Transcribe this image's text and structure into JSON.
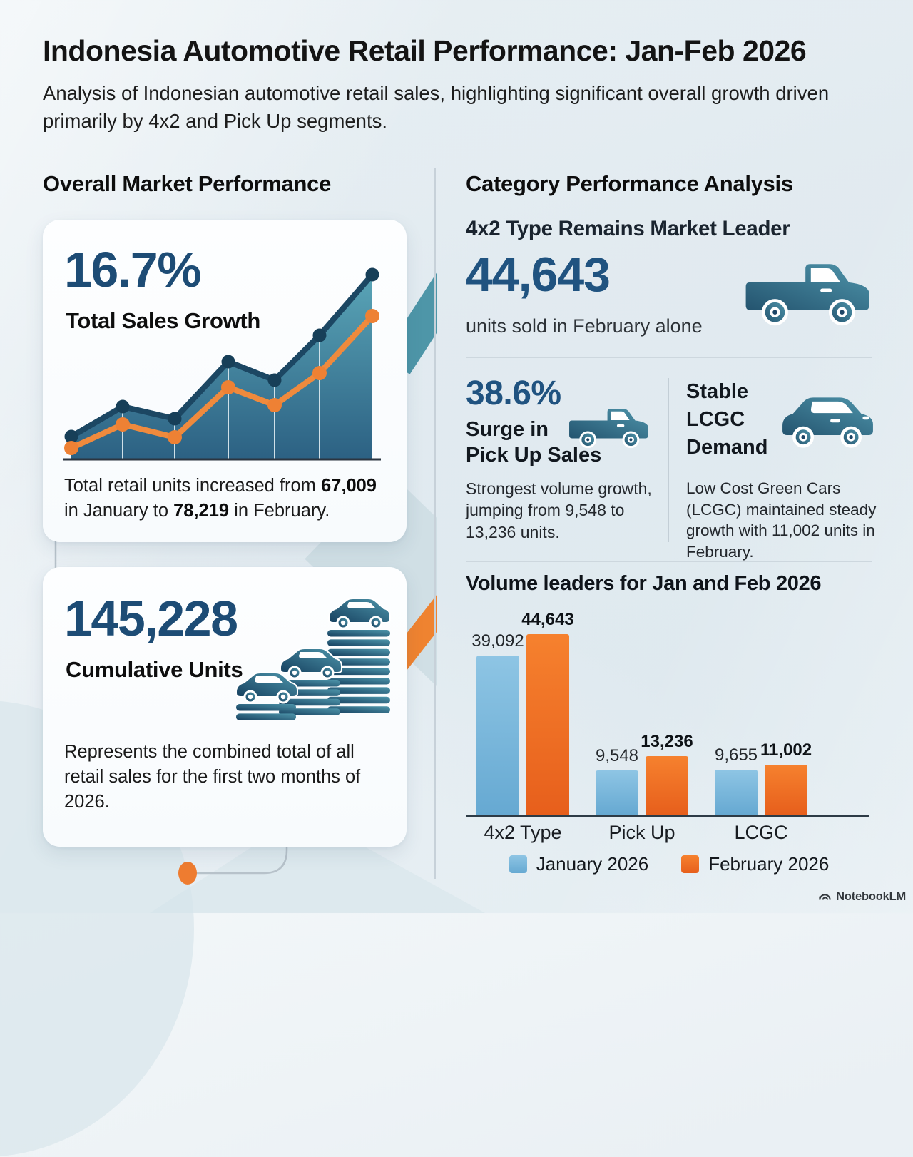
{
  "page": {
    "title": "Indonesia Automotive Retail Performance: Jan-Feb 2026",
    "subtitle": "Analysis of Indonesian automotive retail sales, highlighting significant overall growth driven primarily by 4x2 and Pick Up segments.",
    "watermark": "NotebookLM"
  },
  "left": {
    "header": "Overall Market Performance",
    "growth_card": {
      "stat": "16.7%",
      "stat_label": "Total Sales Growth",
      "desc_1": "Total retail units increased from ",
      "desc_2": "67,009",
      "desc_3": " in January to ",
      "desc_4": "78,219",
      "desc_5": " in February."
    },
    "cumulative_card": {
      "stat": "145,228",
      "stat_label": "Cumulative Units",
      "desc": "Represents the combined total of all retail sales for the first two months of 2026."
    }
  },
  "right": {
    "header": "Category Performance Analysis",
    "leader": {
      "title": "4x2 Type Remains Market Leader",
      "stat": "44,643",
      "stat_label": "units sold in February alone"
    },
    "pickup": {
      "stat": "38.6%",
      "title_line1": "Surge in",
      "title_line2": "Pick Up Sales",
      "desc": "Strongest volume growth, jumping from 9,548 to 13,236 units."
    },
    "lcgc": {
      "title_line1": "Stable",
      "title_line2": "LCGC",
      "title_line3": "Demand",
      "desc": "Low Cost Green Cars (LCGC) maintained steady growth with 11,002 units in February."
    }
  },
  "chart_data": [
    {
      "type": "bar",
      "title": "Volume leaders for Jan and Feb 2026",
      "categories": [
        "4x2 Type",
        "Pick Up",
        "LCGC"
      ],
      "series": [
        {
          "name": "January 2026",
          "color": "#7ab5da",
          "color_top": "#8ec5e4",
          "color_bottom": "#66a9d2",
          "values": [
            39092,
            9548,
            9655
          ],
          "labels": [
            "39,092",
            "9,548",
            "9,655"
          ]
        },
        {
          "name": "February 2026",
          "color": "#f26c1e",
          "color_top": "#f6812e",
          "color_bottom": "#e75f1c",
          "values": [
            44643,
            13236,
            11002
          ],
          "labels": [
            "44,643",
            "13,236",
            "11,002"
          ]
        }
      ],
      "ylim": [
        0,
        47000
      ],
      "grid": false,
      "legend_position": "bottom"
    },
    {
      "type": "area-line",
      "title": "Total sales growth trend (decorative, unlabeled)",
      "x": [
        0,
        1,
        2,
        3,
        4,
        5,
        6
      ],
      "series": [
        {
          "name": "total-units-trend",
          "color": "#1c4763",
          "y_rel": [
            31,
            73,
            56,
            136,
            110,
            173,
            258
          ]
        },
        {
          "name": "secondary-trend",
          "color": "#ef8a3d",
          "y_rel": [
            15,
            48,
            30,
            100,
            75,
            120,
            200
          ]
        }
      ],
      "ylim": [
        0,
        283
      ],
      "grid": true,
      "legend_position": "none"
    }
  ],
  "colors": {
    "accent_blue": "#1d4c75",
    "stat_blue": "#205380",
    "bar_january": "#7ab5da",
    "bar_february": "#f26c1e",
    "trend_dark": "#1c4763",
    "trend_orange": "#ef8a3d",
    "icon_navy": "#16405f",
    "icon_teal": "#4e96ab"
  }
}
